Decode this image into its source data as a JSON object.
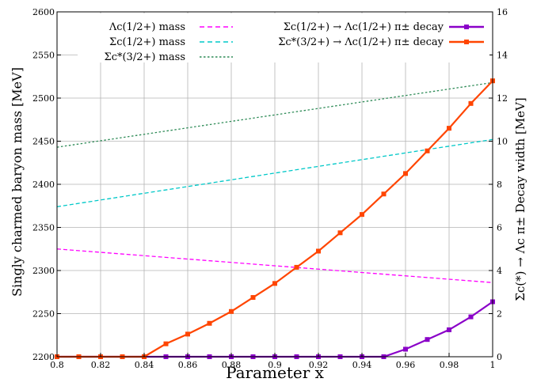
{
  "chart_data": {
    "type": "line",
    "xlabel": "Parameter  x",
    "ylabel_left": "Singly charmed baryon mass [MeV]",
    "ylabel_right": "Σc(*) → Λc π± Decay width [MeV]",
    "xlim": [
      0.8,
      1.0
    ],
    "ylim_left": [
      2200,
      2600
    ],
    "ylim_right": [
      0,
      16
    ],
    "grid": true,
    "legend_placement": "top",
    "x_ticks": [
      "0.8",
      "0.82",
      "0.84",
      "0.86",
      "0.88",
      "0.9",
      "0.92",
      "0.94",
      "0.96",
      "0.98",
      "1"
    ],
    "y_left_ticks": [
      "2200",
      "2250",
      "2300",
      "2350",
      "2400",
      "2450",
      "2500",
      "2550",
      "2600"
    ],
    "y_right_ticks": [
      "0",
      "2",
      "4",
      "6",
      "8",
      "10",
      "12",
      "14",
      "16"
    ],
    "mass_series": [
      {
        "name": "Λc(1/2+) mass",
        "color": "#ff00ff",
        "style": "dashed",
        "x": [
          0.8,
          1.0
        ],
        "y": [
          2325,
          2286
        ]
      },
      {
        "name": "Σc(1/2+) mass",
        "color": "#00c8c8",
        "style": "dashed",
        "x": [
          0.8,
          1.0
        ],
        "y": [
          2374,
          2452
        ]
      },
      {
        "name": "Σc*(3/2+) mass",
        "color": "#2e8b57",
        "style": "dotted",
        "x": [
          0.8,
          1.0
        ],
        "y": [
          2443,
          2518
        ]
      }
    ],
    "width_series": [
      {
        "name": "Σc(1/2+) → Λc(1/2+) π± decay",
        "color": "#8a00c8",
        "x": [
          0.8,
          0.81,
          0.82,
          0.83,
          0.84,
          0.85,
          0.86,
          0.87,
          0.88,
          0.89,
          0.9,
          0.91,
          0.92,
          0.93,
          0.94,
          0.95,
          0.96,
          0.97,
          0.98,
          0.99,
          1.0
        ],
        "y": [
          0,
          0,
          0,
          0,
          0,
          0,
          0,
          0,
          0,
          0,
          0,
          0,
          0,
          0,
          0,
          0,
          0.35,
          0.8,
          1.25,
          1.85,
          2.55
        ]
      },
      {
        "name": "Σc*(3/2+) → Λc(1/2+) π± decay",
        "color": "#ff4500",
        "x": [
          0.8,
          0.81,
          0.82,
          0.83,
          0.84,
          0.85,
          0.86,
          0.87,
          0.88,
          0.89,
          0.9,
          0.91,
          0.92,
          0.93,
          0.94,
          0.95,
          0.96,
          0.97,
          0.98,
          0.99,
          1.0
        ],
        "y": [
          0,
          0,
          0,
          0,
          0,
          0.6,
          1.05,
          1.55,
          2.1,
          2.75,
          3.4,
          4.15,
          4.9,
          5.75,
          6.6,
          7.55,
          8.5,
          9.55,
          10.6,
          11.75,
          12.8
        ]
      }
    ]
  }
}
